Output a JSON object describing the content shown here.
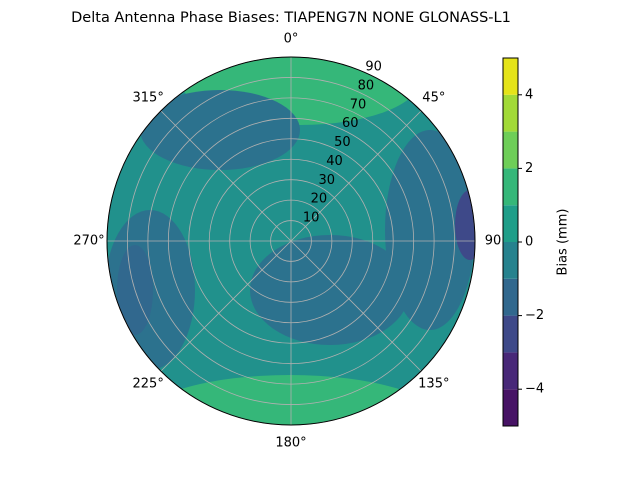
{
  "chart_data": {
    "type": "polar-contour",
    "title": "Delta Antenna Phase Biases: TIAPENG7N       NONE GLONASS-L1",
    "theta_zero": "N",
    "theta_direction": "clockwise",
    "thetaticks": [
      {
        "value": 0,
        "label": "0°"
      },
      {
        "value": 45,
        "label": "45°"
      },
      {
        "value": 90,
        "label": "90"
      },
      {
        "value": 135,
        "label": "135°"
      },
      {
        "value": 180,
        "label": "180°"
      },
      {
        "value": 225,
        "label": "225°"
      },
      {
        "value": 270,
        "label": "270°"
      },
      {
        "value": 315,
        "label": "315°"
      }
    ],
    "rlim": [
      0,
      90
    ],
    "rticks": [
      10,
      20,
      30,
      40,
      50,
      60,
      70,
      80,
      90
    ],
    "grid": true,
    "colorbar": {
      "label": "Bias (mm)",
      "levels": [
        -5,
        -4,
        -3,
        -2,
        -1,
        0,
        1,
        2,
        3,
        4,
        5
      ],
      "colors": [
        "#471365",
        "#482878",
        "#3e4989",
        "#31688e",
        "#26828e",
        "#1f9e89",
        "#35b779",
        "#6ece58",
        "#a2da37",
        "#e5e419"
      ],
      "ticks": [
        {
          "value": -4,
          "label": "−4"
        },
        {
          "value": -2,
          "label": "−2"
        },
        0,
        2,
        4
      ]
    }
  }
}
